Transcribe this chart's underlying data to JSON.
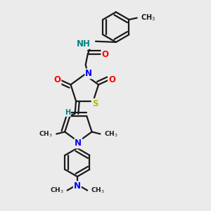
{
  "bg_color": "#ebebeb",
  "bond_color": "#1a1a1a",
  "bond_width": 1.6,
  "atom_colors": {
    "N": "#0000ff",
    "O": "#ff0000",
    "S": "#b8b800",
    "H": "#008080",
    "C": "#1a1a1a"
  },
  "font_size_atom": 8.5,
  "font_size_small": 7.0
}
